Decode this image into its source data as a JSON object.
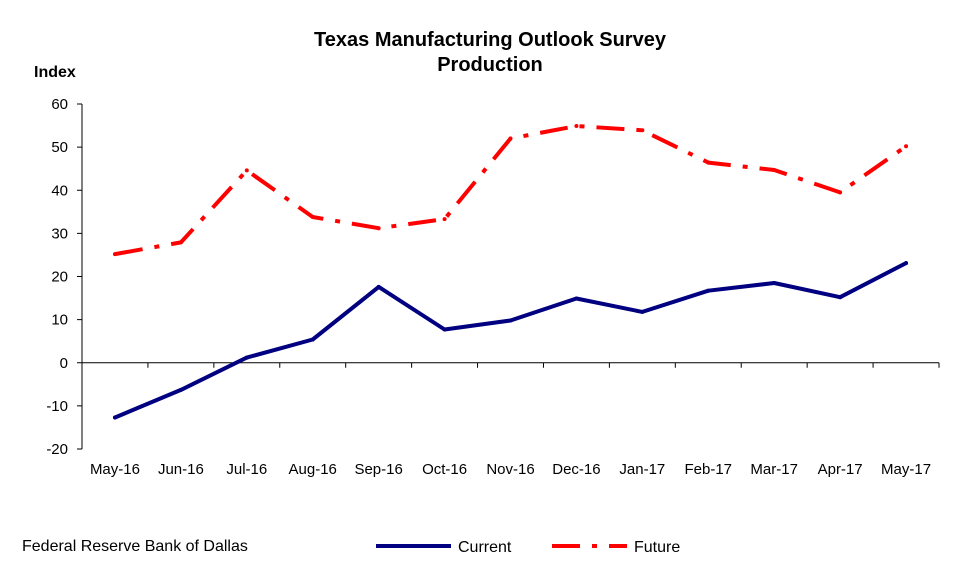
{
  "chart_data": {
    "type": "line",
    "title": "Texas Manufacturing Outlook Survey",
    "subtitle": "Production",
    "ylabel": "Index",
    "xlabel": "",
    "ylim": [
      -20,
      60
    ],
    "yticks": [
      -20,
      -10,
      0,
      10,
      20,
      30,
      40,
      50,
      60
    ],
    "categories": [
      "May-16",
      "Jun-16",
      "Jul-16",
      "Aug-16",
      "Sep-16",
      "Oct-16",
      "Nov-16",
      "Dec-16",
      "Jan-17",
      "Feb-17",
      "Mar-17",
      "Apr-17",
      "May-17"
    ],
    "series": [
      {
        "name": "Current",
        "color": "#000080",
        "style": "solid",
        "values": [
          -12.7,
          -6.3,
          1.2,
          5.4,
          17.6,
          7.7,
          9.8,
          14.9,
          11.8,
          16.7,
          18.5,
          15.2,
          23.1
        ]
      },
      {
        "name": "Future",
        "color": "#ff0000",
        "style": "dash-dot",
        "values": [
          25.2,
          27.9,
          44.6,
          33.8,
          31.2,
          33.3,
          52.0,
          54.9,
          53.9,
          46.4,
          44.7,
          39.5,
          50.2
        ]
      }
    ],
    "grid": false,
    "legend_position": "bottom"
  },
  "footer": {
    "source": "Federal Reserve Bank of Dallas"
  }
}
